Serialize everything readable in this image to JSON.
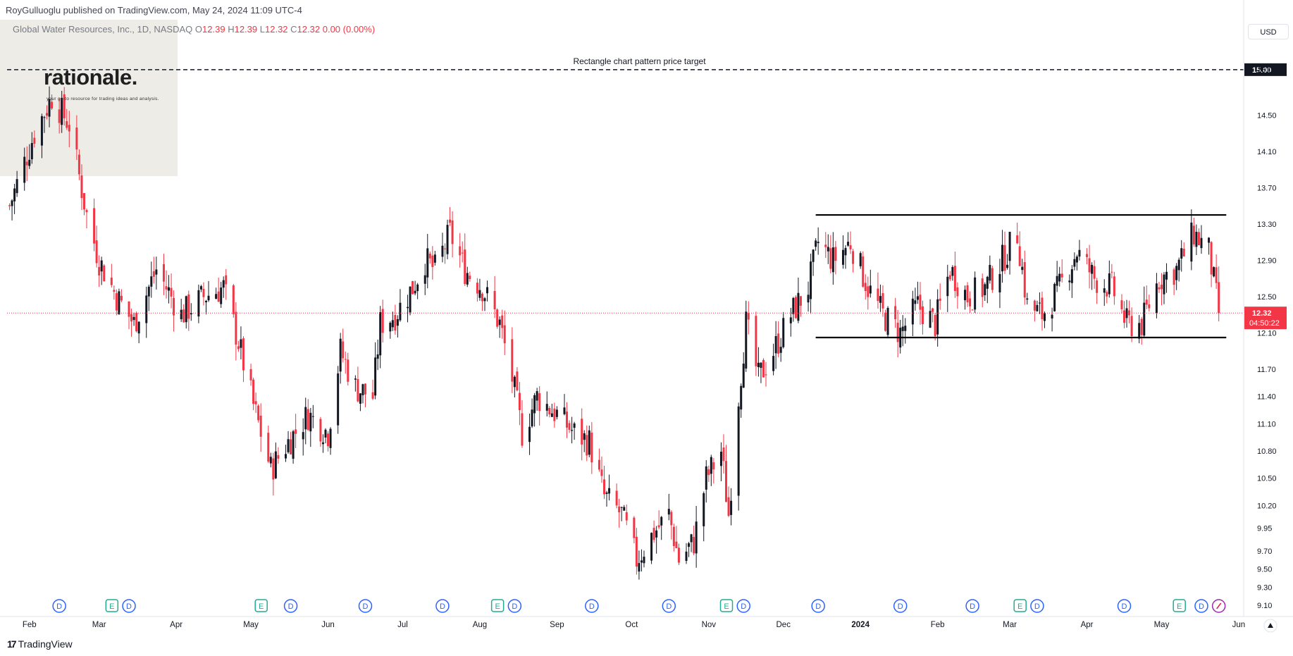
{
  "header": {
    "publisher": "RoyGulluoglu published on TradingView.com, May 24, 2024 11:09 UTC-4",
    "symbol_line": "Global Water Resources, Inc., 1D, NASDAQ",
    "ohlc": [
      {
        "label": "O",
        "value": "12.39"
      },
      {
        "label": "H",
        "value": "12.39"
      },
      {
        "label": "L",
        "value": "12.32"
      },
      {
        "label": "C",
        "value": "12.32"
      },
      {
        "label": "",
        "value": "0.00 (0.00%)"
      }
    ]
  },
  "logo": {
    "name": "rationale.",
    "tagline": "your go-to resource for trading ideas and analysis."
  },
  "toolbar": {
    "currency": "USD"
  },
  "footer": {
    "brand": "TradingView",
    "brand_mark": "17"
  },
  "annotation": {
    "target_label": "Rectangle chart pattern price target",
    "target_price": 15.0,
    "rectangle": {
      "top": 13.4,
      "bottom": 12.05,
      "start": "2023-12-14",
      "end": "2024-05-27"
    }
  },
  "price_badge": {
    "price": "12.32",
    "countdown": "04:50:22"
  },
  "events": [
    {
      "date": "2023-02-13",
      "type": "D"
    },
    {
      "date": "2023-03-06",
      "type": "E"
    },
    {
      "date": "2023-03-13",
      "type": "D"
    },
    {
      "date": "2023-05-05",
      "type": "E"
    },
    {
      "date": "2023-05-17",
      "type": "D"
    },
    {
      "date": "2023-06-16",
      "type": "D"
    },
    {
      "date": "2023-07-17",
      "type": "D"
    },
    {
      "date": "2023-08-08",
      "type": "E"
    },
    {
      "date": "2023-08-15",
      "type": "D"
    },
    {
      "date": "2023-09-15",
      "type": "D"
    },
    {
      "date": "2023-10-16",
      "type": "D"
    },
    {
      "date": "2023-11-08",
      "type": "E"
    },
    {
      "date": "2023-11-15",
      "type": "D"
    },
    {
      "date": "2023-12-15",
      "type": "D"
    },
    {
      "date": "2024-01-17",
      "type": "D"
    },
    {
      "date": "2024-02-15",
      "type": "D"
    },
    {
      "date": "2024-03-05",
      "type": "E"
    },
    {
      "date": "2024-03-12",
      "type": "D"
    },
    {
      "date": "2024-04-16",
      "type": "D"
    },
    {
      "date": "2024-05-08",
      "type": "E"
    },
    {
      "date": "2024-05-17",
      "type": "D"
    },
    {
      "date": "2024-05-24",
      "type": "split-icon"
    }
  ],
  "chart_data": {
    "type": "candlestick",
    "symbol": "Global Water Resources, Inc.",
    "interval": "1D",
    "exchange": "NASDAQ",
    "currency": "USD",
    "ylim": [
      9.0,
      15.55
    ],
    "y_ticks": [
      "15.00",
      "14.50",
      "14.10",
      "13.70",
      "13.30",
      "12.90",
      "12.50",
      "12.10",
      "11.70",
      "11.40",
      "11.10",
      "10.80",
      "10.50",
      "10.20",
      "9.95",
      "9.70",
      "9.50",
      "9.30",
      "9.10"
    ],
    "x_ticks": [
      {
        "date": "2023-02-01",
        "label": "Feb"
      },
      {
        "date": "2023-03-01",
        "label": "Mar"
      },
      {
        "date": "2023-04-01",
        "label": "Apr"
      },
      {
        "date": "2023-05-01",
        "label": "May"
      },
      {
        "date": "2023-06-01",
        "label": "Jun"
      },
      {
        "date": "2023-07-01",
        "label": "Jul"
      },
      {
        "date": "2023-08-01",
        "label": "Aug"
      },
      {
        "date": "2023-09-01",
        "label": "Sep"
      },
      {
        "date": "2023-10-01",
        "label": "Oct"
      },
      {
        "date": "2023-11-01",
        "label": "Nov"
      },
      {
        "date": "2023-12-01",
        "label": "Dec"
      },
      {
        "date": "2024-01-01",
        "label": "2024"
      },
      {
        "date": "2024-02-01",
        "label": "Feb"
      },
      {
        "date": "2024-03-01",
        "label": "Mar"
      },
      {
        "date": "2024-04-01",
        "label": "Apr"
      },
      {
        "date": "2024-05-01",
        "label": "May"
      },
      {
        "date": "2024-06-01",
        "label": "Jun"
      }
    ],
    "x_range": [
      "2023-01-23",
      "2024-06-03"
    ],
    "last_close": 12.32,
    "close_path": [
      {
        "date": "2023-01-24",
        "close": 13.5
      },
      {
        "date": "2023-02-03",
        "close": 14.3
      },
      {
        "date": "2023-02-10",
        "close": 14.7
      },
      {
        "date": "2023-02-17",
        "close": 14.4
      },
      {
        "date": "2023-02-24",
        "close": 13.4
      },
      {
        "date": "2023-03-01",
        "close": 12.9
      },
      {
        "date": "2023-03-08",
        "close": 12.5
      },
      {
        "date": "2023-03-15",
        "close": 12.2
      },
      {
        "date": "2023-03-24",
        "close": 12.8
      },
      {
        "date": "2023-04-03",
        "close": 12.3
      },
      {
        "date": "2023-04-12",
        "close": 12.5
      },
      {
        "date": "2023-04-20",
        "close": 12.6
      },
      {
        "date": "2023-04-26",
        "close": 12.0
      },
      {
        "date": "2023-05-02",
        "close": 11.3
      },
      {
        "date": "2023-05-09",
        "close": 10.6
      },
      {
        "date": "2023-05-16",
        "close": 10.9
      },
      {
        "date": "2023-05-24",
        "close": 11.2
      },
      {
        "date": "2023-06-01",
        "close": 11.0
      },
      {
        "date": "2023-06-06",
        "close": 11.9
      },
      {
        "date": "2023-06-12",
        "close": 11.5
      },
      {
        "date": "2023-06-19",
        "close": 11.4
      },
      {
        "date": "2023-06-22",
        "close": 12.2
      },
      {
        "date": "2023-06-28",
        "close": 12.3
      },
      {
        "date": "2023-07-05",
        "close": 12.6
      },
      {
        "date": "2023-07-10",
        "close": 12.9
      },
      {
        "date": "2023-07-14",
        "close": 12.8
      },
      {
        "date": "2023-07-20",
        "close": 13.2
      },
      {
        "date": "2023-07-26",
        "close": 12.8
      },
      {
        "date": "2023-08-02",
        "close": 12.6
      },
      {
        "date": "2023-08-09",
        "close": 12.2
      },
      {
        "date": "2023-08-14",
        "close": 11.6
      },
      {
        "date": "2023-08-18",
        "close": 11.0
      },
      {
        "date": "2023-08-24",
        "close": 11.4
      },
      {
        "date": "2023-09-01",
        "close": 11.2
      },
      {
        "date": "2023-09-08",
        "close": 11.0
      },
      {
        "date": "2023-09-14",
        "close": 10.9
      },
      {
        "date": "2023-09-20",
        "close": 10.3
      },
      {
        "date": "2023-09-27",
        "close": 10.1
      },
      {
        "date": "2023-10-03",
        "close": 9.6
      },
      {
        "date": "2023-10-10",
        "close": 9.9
      },
      {
        "date": "2023-10-16",
        "close": 10.1
      },
      {
        "date": "2023-10-20",
        "close": 9.6
      },
      {
        "date": "2023-10-26",
        "close": 9.8
      },
      {
        "date": "2023-10-31",
        "close": 10.5
      },
      {
        "date": "2023-11-06",
        "close": 10.8
      },
      {
        "date": "2023-11-09",
        "close": 10.1
      },
      {
        "date": "2023-11-13",
        "close": 11.4
      },
      {
        "date": "2023-11-16",
        "close": 12.2
      },
      {
        "date": "2023-11-21",
        "close": 11.6
      },
      {
        "date": "2023-11-27",
        "close": 11.9
      },
      {
        "date": "2023-12-04",
        "close": 12.3
      },
      {
        "date": "2023-12-11",
        "close": 12.6
      },
      {
        "date": "2023-12-15",
        "close": 13.1
      },
      {
        "date": "2023-12-21",
        "close": 12.9
      },
      {
        "date": "2023-12-28",
        "close": 13.1
      },
      {
        "date": "2024-01-04",
        "close": 12.6
      },
      {
        "date": "2024-01-10",
        "close": 12.3
      },
      {
        "date": "2024-01-17",
        "close": 12.1
      },
      {
        "date": "2024-01-24",
        "close": 12.4
      },
      {
        "date": "2024-01-31",
        "close": 12.2
      },
      {
        "date": "2024-02-06",
        "close": 12.8
      },
      {
        "date": "2024-02-13",
        "close": 12.5
      },
      {
        "date": "2024-02-20",
        "close": 12.6
      },
      {
        "date": "2024-02-27",
        "close": 12.9
      },
      {
        "date": "2024-03-04",
        "close": 13.2
      },
      {
        "date": "2024-03-08",
        "close": 12.4
      },
      {
        "date": "2024-03-14",
        "close": 12.3
      },
      {
        "date": "2024-03-21",
        "close": 12.6
      },
      {
        "date": "2024-03-28",
        "close": 13.0
      },
      {
        "date": "2024-04-04",
        "close": 12.7
      },
      {
        "date": "2024-04-11",
        "close": 12.6
      },
      {
        "date": "2024-04-17",
        "close": 12.2
      },
      {
        "date": "2024-04-23",
        "close": 12.2
      },
      {
        "date": "2024-04-30",
        "close": 12.7
      },
      {
        "date": "2024-05-07",
        "close": 12.8
      },
      {
        "date": "2024-05-14",
        "close": 13.2
      },
      {
        "date": "2024-05-20",
        "close": 13.0
      },
      {
        "date": "2024-05-24",
        "close": 12.32
      }
    ]
  }
}
